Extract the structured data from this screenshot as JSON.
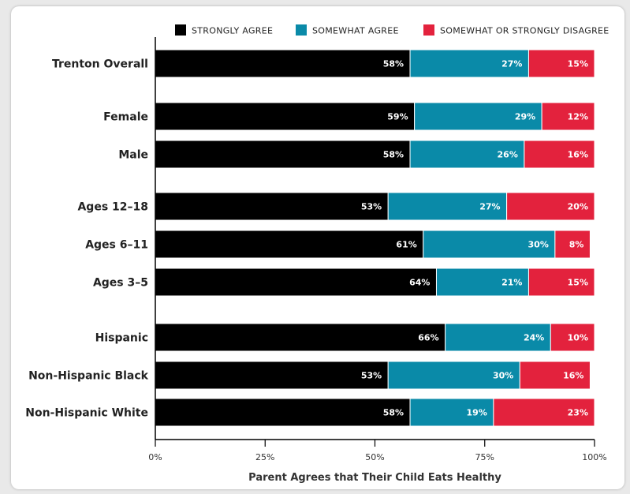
{
  "chart_data": {
    "type": "bar",
    "orientation": "horizontal",
    "stacked": true,
    "title": "",
    "xlabel": "Parent Agrees that Their Child Eats Healthy",
    "ylabel": "",
    "xlim": [
      0,
      100
    ],
    "x_ticks": [
      "0%",
      "25%",
      "50%",
      "75%",
      "100%"
    ],
    "legend_placement": "top",
    "categories": [
      "Trenton Overall",
      "Female",
      "Male",
      "Ages 12–18",
      "Ages 6–11",
      "Ages 3–5",
      "Hispanic",
      "Non-Hispanic Black",
      "Non-Hispanic White"
    ],
    "groups": [
      [
        0
      ],
      [
        1,
        2
      ],
      [
        3,
        4,
        5
      ],
      [
        6,
        7,
        8
      ]
    ],
    "series": [
      {
        "name": "STRONGLY AGREE",
        "color": "#000000",
        "values": [
          58,
          59,
          58,
          53,
          61,
          64,
          66,
          53,
          58
        ]
      },
      {
        "name": "SOMEWHAT AGREE",
        "color": "#0a8aa8",
        "values": [
          27,
          29,
          26,
          27,
          30,
          21,
          24,
          30,
          19
        ]
      },
      {
        "name": "SOMEWHAT OR STRONGLY DISAGREE",
        "color": "#e3223d",
        "values": [
          15,
          12,
          16,
          20,
          8,
          15,
          10,
          16,
          23
        ]
      }
    ],
    "value_labels": [
      [
        "58%",
        "27%",
        "15%"
      ],
      [
        "59%",
        "29%",
        "12%"
      ],
      [
        "58%",
        "26%",
        "16%"
      ],
      [
        "53%",
        "27%",
        "20%"
      ],
      [
        "61%",
        "30%",
        "8%"
      ],
      [
        "64%",
        "21%",
        "15%"
      ],
      [
        "66%",
        "24%",
        "10%"
      ],
      [
        "53%",
        "30%",
        "16%"
      ],
      [
        "58%",
        "19%",
        "23%"
      ]
    ],
    "grid": false
  }
}
